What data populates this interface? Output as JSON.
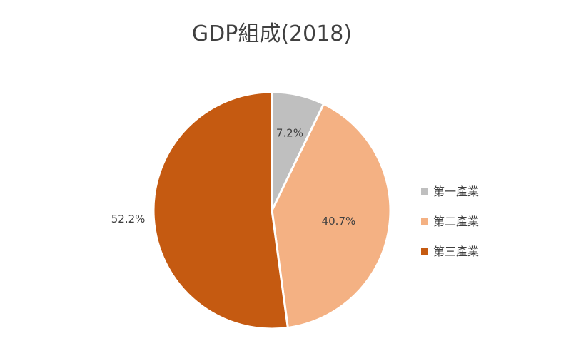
{
  "chart_data": {
    "type": "pie",
    "title": "GDP組成(2018)",
    "start_angle_deg": 0,
    "direction": "clockwise",
    "legend_position": "right",
    "slices": [
      {
        "label": "第一產業",
        "value": 7.2,
        "display": "7.2%",
        "color": "#BFBFBF"
      },
      {
        "label": "第二產業",
        "value": 40.7,
        "display": "40.7%",
        "color": "#F4B183"
      },
      {
        "label": "第三產業",
        "value": 52.2,
        "display": "52.2%",
        "color": "#C55A11"
      }
    ]
  }
}
